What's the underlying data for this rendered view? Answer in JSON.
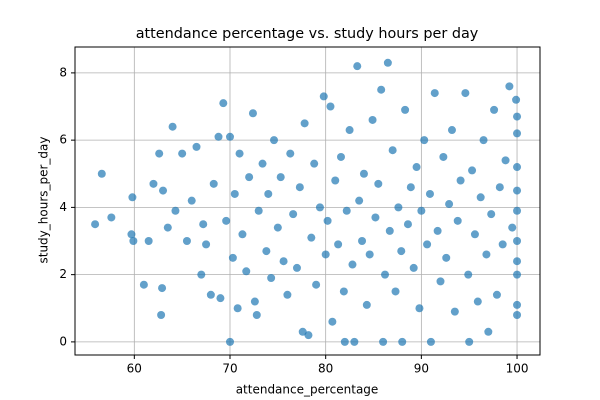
{
  "chart_data": {
    "type": "scatter",
    "title": "attendance percentage vs. study hours per day",
    "x_label": "attendance_percentage",
    "y_label": "study_hours_per_day",
    "color": "#1f77b4",
    "grid": true,
    "xlim": [
      53.8,
      102.4
    ],
    "ylim": [
      -0.39,
      8.77
    ],
    "xticks": [
      60,
      70,
      80,
      90,
      100
    ],
    "yticks": [
      0,
      2,
      4,
      6,
      8
    ],
    "x": [
      55.9,
      56.6,
      57.6,
      59.7,
      59.8,
      59.9,
      61.0,
      61.5,
      62.0,
      62.6,
      62.8,
      62.9,
      63.0,
      63.5,
      64.0,
      64.3,
      65.0,
      65.5,
      66.0,
      66.5,
      67.0,
      67.2,
      67.5,
      68.0,
      68.3,
      68.8,
      69.0,
      69.3,
      69.6,
      70.0,
      70.0,
      70.3,
      70.5,
      70.8,
      71.0,
      71.3,
      71.7,
      72.0,
      72.4,
      72.6,
      72.8,
      73.0,
      73.4,
      73.8,
      74.0,
      74.3,
      74.6,
      75.0,
      75.3,
      75.6,
      76.0,
      76.3,
      76.6,
      77.0,
      77.3,
      77.6,
      77.8,
      78.2,
      78.5,
      78.8,
      79.0,
      79.4,
      79.8,
      80.0,
      80.2,
      80.5,
      80.7,
      81.0,
      81.3,
      81.6,
      81.9,
      82.0,
      82.2,
      82.5,
      82.8,
      83.0,
      83.3,
      83.5,
      83.8,
      84.0,
      84.3,
      84.6,
      84.9,
      85.2,
      85.5,
      85.8,
      86.0,
      86.2,
      86.5,
      86.7,
      87.0,
      87.3,
      87.6,
      87.9,
      88.0,
      88.3,
      88.6,
      88.9,
      89.2,
      89.5,
      89.8,
      90.0,
      90.3,
      90.6,
      90.9,
      91.0,
      91.4,
      91.7,
      92.0,
      92.3,
      92.6,
      92.9,
      93.2,
      93.5,
      93.8,
      94.1,
      94.6,
      94.9,
      95.0,
      95.3,
      95.6,
      95.9,
      96.2,
      96.5,
      96.8,
      97.0,
      97.3,
      97.6,
      97.9,
      98.2,
      98.5,
      98.8,
      99.2,
      99.5,
      99.9,
      100.0,
      100.0,
      100.0,
      100.0,
      100.0,
      100.0,
      100.0,
      100.0,
      100.0,
      100.0
    ],
    "values": [
      3.5,
      5.0,
      3.7,
      3.2,
      4.3,
      3.0,
      1.7,
      3.0,
      4.7,
      5.6,
      0.8,
      1.6,
      4.5,
      3.4,
      6.4,
      3.9,
      5.6,
      3.0,
      4.2,
      5.8,
      2.0,
      3.5,
      2.9,
      1.4,
      4.7,
      6.1,
      1.3,
      7.1,
      3.6,
      0.0,
      6.1,
      2.5,
      4.4,
      1.0,
      5.6,
      3.2,
      2.1,
      4.9,
      6.8,
      1.2,
      0.8,
      3.9,
      5.3,
      2.7,
      4.4,
      1.9,
      6.0,
      3.4,
      4.9,
      2.4,
      1.4,
      5.6,
      3.8,
      2.2,
      4.6,
      0.3,
      6.5,
      0.2,
      3.1,
      5.3,
      1.7,
      4.0,
      7.3,
      2.6,
      3.6,
      7.0,
      0.6,
      4.8,
      2.9,
      5.5,
      1.5,
      0.0,
      3.9,
      6.3,
      2.3,
      0.0,
      8.2,
      4.2,
      3.0,
      5.0,
      1.1,
      2.6,
      6.6,
      3.7,
      4.7,
      7.5,
      0.0,
      2.0,
      8.3,
      3.3,
      5.7,
      1.5,
      4.0,
      2.7,
      0.0,
      6.9,
      3.5,
      4.6,
      2.2,
      5.2,
      1.0,
      3.9,
      6.0,
      2.9,
      4.4,
      0.0,
      7.4,
      3.3,
      1.8,
      5.5,
      2.5,
      4.1,
      6.3,
      0.9,
      3.6,
      4.8,
      7.4,
      2.0,
      0.0,
      5.1,
      3.2,
      1.2,
      4.3,
      6.0,
      2.6,
      0.3,
      3.8,
      6.9,
      1.4,
      4.6,
      2.9,
      5.4,
      7.6,
      3.4,
      7.2,
      0.8,
      1.1,
      2.4,
      3.0,
      3.9,
      4.5,
      5.2,
      6.2,
      6.7,
      2.0
    ]
  }
}
